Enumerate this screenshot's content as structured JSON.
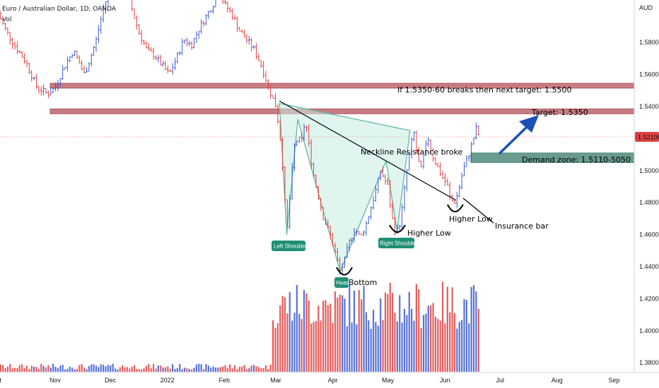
{
  "header": {
    "symbol_title": "Euro / Australian Dollar, 1D, OANDA",
    "volume_label": "Vol",
    "currency": "AUD"
  },
  "colors": {
    "up_bar": "#3b5bd1",
    "down_bar": "#e0413f",
    "zone_red": "#b3525a",
    "zone_green": "#4f8a7a",
    "pattern_fill": "#c9ece2",
    "pattern_stroke": "#5fb9a0",
    "tag_bg": "#1f8f76",
    "arrow": "#1d4fb8",
    "last_price_tag": "#e0413f"
  },
  "chart_data": {
    "type": "ohlc-bar",
    "y_axis": {
      "ticks": [
        "1.58000",
        "1.56000",
        "1.54000",
        "1.52000",
        "1.50000",
        "1.48000",
        "1.46000",
        "1.44000",
        "1.42000",
        "1.40000",
        "1.38000"
      ],
      "ylim": [
        1.372,
        1.605
      ]
    },
    "last_price": "1.52106",
    "x_axis": {
      "ticks": [
        {
          "label": "Oct",
          "day": -2
        },
        {
          "label": "Nov",
          "day": 30
        },
        {
          "label": "Dec",
          "day": 60
        },
        {
          "label": "2022",
          "day": 91
        },
        {
          "label": "Feb",
          "day": 122
        },
        {
          "label": "Mar",
          "day": 150
        },
        {
          "label": "Apr",
          "day": 181
        },
        {
          "label": "May",
          "day": 211
        },
        {
          "label": "Jun",
          "day": 242
        },
        {
          "label": "Jul",
          "day": 272
        },
        {
          "label": "Aug",
          "day": 303
        },
        {
          "label": "Sep",
          "day": 334
        }
      ]
    },
    "price_path": [
      [
        -1,
        1.598
      ],
      [
        3,
        1.588
      ],
      [
        8,
        1.578
      ],
      [
        14,
        1.568
      ],
      [
        20,
        1.552
      ],
      [
        26,
        1.548
      ],
      [
        30,
        1.552
      ],
      [
        35,
        1.565
      ],
      [
        40,
        1.575
      ],
      [
        46,
        1.56
      ],
      [
        52,
        1.58
      ],
      [
        56,
        1.6
      ],
      [
        60,
        1.615
      ],
      [
        64,
        1.64
      ],
      [
        68,
        1.62
      ],
      [
        72,
        1.6
      ],
      [
        76,
        1.585
      ],
      [
        80,
        1.575
      ],
      [
        84,
        1.572
      ],
      [
        88,
        1.566
      ],
      [
        92,
        1.56
      ],
      [
        96,
        1.57
      ],
      [
        100,
        1.582
      ],
      [
        104,
        1.578
      ],
      [
        108,
        1.588
      ],
      [
        112,
        1.596
      ],
      [
        116,
        1.604
      ],
      [
        119,
        1.612
      ],
      [
        122,
        1.604
      ],
      [
        126,
        1.598
      ],
      [
        130,
        1.588
      ],
      [
        134,
        1.582
      ],
      [
        138,
        1.576
      ],
      [
        142,
        1.566
      ],
      [
        146,
        1.552
      ],
      [
        150,
        1.54
      ],
      [
        152,
        1.525
      ],
      [
        154,
        1.5
      ],
      [
        156,
        1.46
      ],
      [
        158,
        1.488
      ],
      [
        160,
        1.515
      ],
      [
        162,
        1.52
      ],
      [
        164,
        1.518
      ],
      [
        166,
        1.532
      ],
      [
        168,
        1.516
      ],
      [
        170,
        1.5
      ],
      [
        173,
        1.485
      ],
      [
        176,
        1.47
      ],
      [
        179,
        1.462
      ],
      [
        182,
        1.45
      ],
      [
        185,
        1.437
      ],
      [
        187,
        1.442
      ],
      [
        190,
        1.455
      ],
      [
        193,
        1.464
      ],
      [
        196,
        1.458
      ],
      [
        199,
        1.466
      ],
      [
        202,
        1.478
      ],
      [
        205,
        1.49
      ],
      [
        207,
        1.5
      ],
      [
        209,
        1.495
      ],
      [
        211,
        1.49
      ],
      [
        213,
        1.472
      ],
      [
        215,
        1.462
      ],
      [
        217,
        1.464
      ],
      [
        219,
        1.478
      ],
      [
        221,
        1.498
      ],
      [
        223,
        1.512
      ],
      [
        225,
        1.525
      ],
      [
        227,
        1.508
      ],
      [
        229,
        1.5
      ],
      [
        231,
        1.512
      ],
      [
        233,
        1.52
      ],
      [
        235,
        1.51
      ],
      [
        237,
        1.505
      ],
      [
        239,
        1.5
      ],
      [
        241,
        1.495
      ],
      [
        243,
        1.492
      ],
      [
        245,
        1.482
      ],
      [
        247,
        1.48
      ],
      [
        249,
        1.485
      ],
      [
        251,
        1.496
      ],
      [
        253,
        1.504
      ],
      [
        255,
        1.51
      ],
      [
        257,
        1.518
      ],
      [
        259,
        1.526
      ],
      [
        261,
        1.521
      ]
    ],
    "volume": {
      "active_from_day": 148,
      "until_day": 261,
      "peak": 135,
      "base": 0.06
    },
    "zones": [
      {
        "name": "upper-resistance-zone",
        "low": 1.5515,
        "high": 1.5545,
        "color": "red"
      },
      {
        "name": "target-zone",
        "low": 1.5355,
        "high": 1.5385,
        "color": "red"
      },
      {
        "name": "demand-zone",
        "low": 1.505,
        "high": 1.511,
        "color": "green"
      }
    ],
    "neckline": [
      [
        152,
        1.5435
      ],
      [
        248,
        1.4815
      ]
    ],
    "pattern": [
      [
        152,
        1.542
      ],
      [
        156,
        1.46
      ],
      [
        162,
        1.532
      ],
      [
        185,
        1.437
      ],
      [
        210,
        1.506
      ],
      [
        216,
        1.462
      ],
      [
        223,
        1.525
      ]
    ],
    "annotations": {
      "upper_zone_text": "If 1.5350-60 breaks then next target: 1.5500",
      "target_text": "Target: 1.5350",
      "demand_text": "Demand zone: 1.5110-5050",
      "neckline_text": "Neckline Resistance broke",
      "left_shoulder": "Left Shoulder",
      "head": "Head",
      "bottom_text": "Bottom",
      "right_shoulder": "Right Shoulder",
      "higher_low_1": "Higher Low",
      "higher_low_2": "Higher Low",
      "insurance_bar": "Insurance bar"
    }
  }
}
